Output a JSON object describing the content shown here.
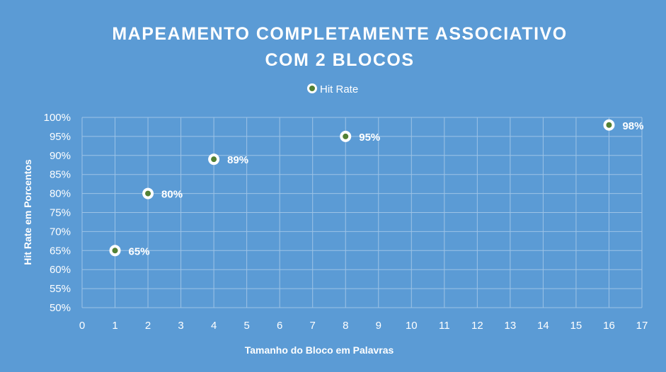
{
  "chart_data": {
    "type": "scatter",
    "title_lines": [
      "MAPEAMENTO COMPLETAMENTE ASSOCIATIVO",
      "COM 2 BLOCOS"
    ],
    "xlabel": "Tamanho do Bloco em Palavras",
    "ylabel": "Hit Rate em Porcentos",
    "xlim": [
      0,
      17
    ],
    "ylim": [
      0.5,
      1.0
    ],
    "x_ticks": [
      "0",
      "1",
      "2",
      "3",
      "4",
      "5",
      "6",
      "7",
      "8",
      "9",
      "10",
      "11",
      "12",
      "13",
      "14",
      "15",
      "16",
      "17"
    ],
    "y_ticks": [
      "50%",
      "55%",
      "60%",
      "65%",
      "70%",
      "75%",
      "80%",
      "85%",
      "90%",
      "95%",
      "100%"
    ],
    "grid": true,
    "legend_position": "top",
    "series": [
      {
        "name": "Hit Rate",
        "color": "#538135",
        "points": [
          {
            "x": 1,
            "y": 0.65,
            "label": "65%"
          },
          {
            "x": 2,
            "y": 0.8,
            "label": "80%"
          },
          {
            "x": 4,
            "y": 0.89,
            "label": "89%"
          },
          {
            "x": 8,
            "y": 0.95,
            "label": "95%"
          },
          {
            "x": 16,
            "y": 0.98,
            "label": "98%"
          }
        ]
      }
    ]
  }
}
